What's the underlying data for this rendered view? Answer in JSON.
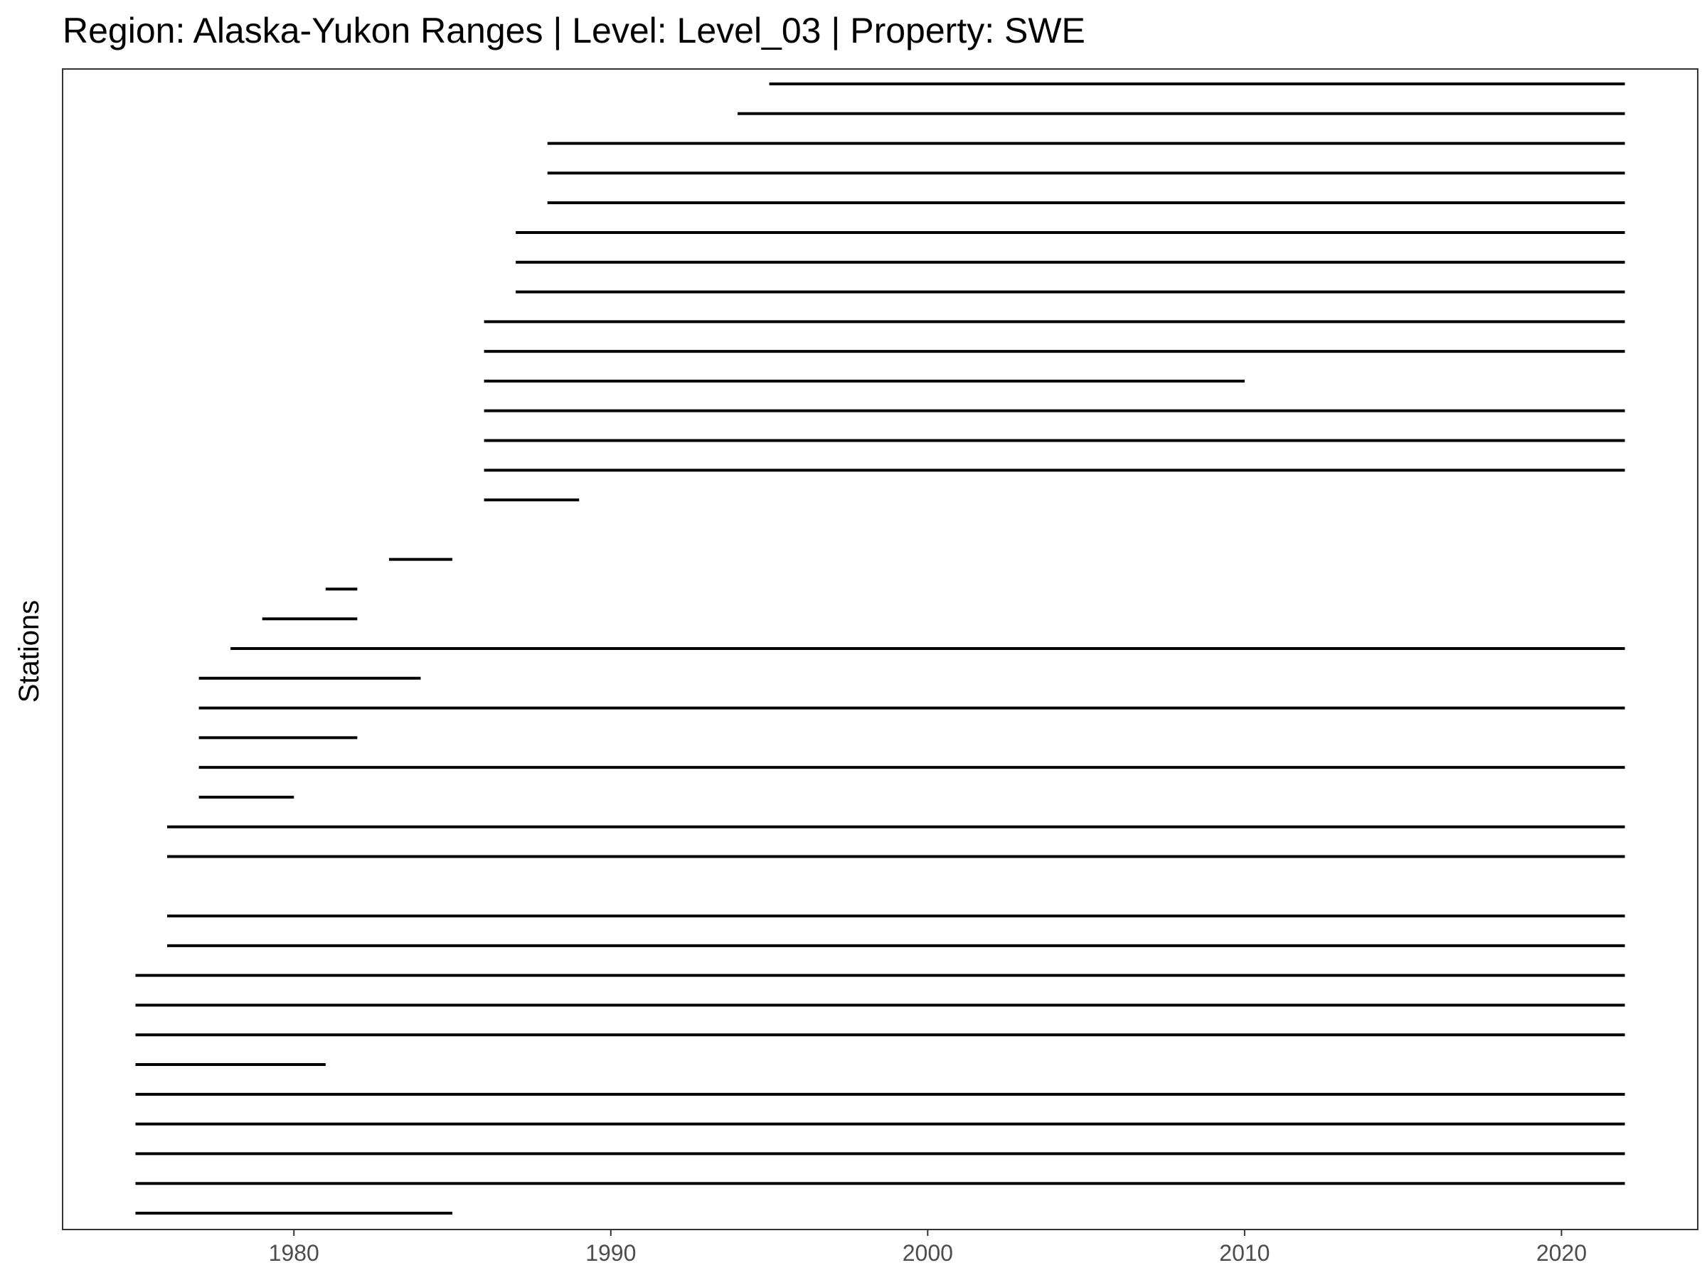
{
  "chart_data": {
    "type": "line",
    "title": "Region: Alaska-Yukon Ranges | Level: Level_03 | Property: SWE",
    "xlabel": "",
    "ylabel": "Stations",
    "xlim": [
      1972.7,
      2024.3
    ],
    "x_ticks": [
      "1980",
      "1990",
      "2000",
      "2010",
      "2020"
    ],
    "y_ticks": [],
    "grid": false,
    "legend": "none",
    "line_color": "#000000",
    "series": [
      {
        "start": 1975,
        "end": 1985
      },
      {
        "start": 1975,
        "end": 2022
      },
      {
        "start": 1975,
        "end": 2022
      },
      {
        "start": 1975,
        "end": 2022
      },
      {
        "start": 1975,
        "end": 2022
      },
      {
        "start": 1975,
        "end": 1981
      },
      {
        "start": 1975,
        "end": 2022
      },
      {
        "start": 1975,
        "end": 2022
      },
      {
        "start": 1975,
        "end": 2022
      },
      {
        "start": 1976,
        "end": 2022
      },
      {
        "start": 1976,
        "end": 2022
      },
      null,
      {
        "start": 1976,
        "end": 2022
      },
      {
        "start": 1976,
        "end": 2022
      },
      {
        "start": 1977,
        "end": 1980
      },
      {
        "start": 1977,
        "end": 2022
      },
      {
        "start": 1977,
        "end": 1982
      },
      {
        "start": 1977,
        "end": 2022
      },
      {
        "start": 1977,
        "end": 1984
      },
      {
        "start": 1978,
        "end": 2022
      },
      {
        "start": 1979,
        "end": 1982
      },
      {
        "start": 1981,
        "end": 1982
      },
      {
        "start": 1983,
        "end": 1985
      },
      null,
      {
        "start": 1986,
        "end": 1989
      },
      {
        "start": 1986,
        "end": 2022
      },
      {
        "start": 1986,
        "end": 2022
      },
      {
        "start": 1986,
        "end": 2022
      },
      {
        "start": 1986,
        "end": 2010
      },
      {
        "start": 1986,
        "end": 2022
      },
      {
        "start": 1986,
        "end": 2022
      },
      {
        "start": 1987,
        "end": 2022
      },
      {
        "start": 1987,
        "end": 2022
      },
      {
        "start": 1987,
        "end": 2022
      },
      {
        "start": 1988,
        "end": 2022
      },
      {
        "start": 1988,
        "end": 2022
      },
      {
        "start": 1988,
        "end": 2022
      },
      {
        "start": 1994,
        "end": 2022
      },
      {
        "start": 1995,
        "end": 2022
      }
    ]
  }
}
